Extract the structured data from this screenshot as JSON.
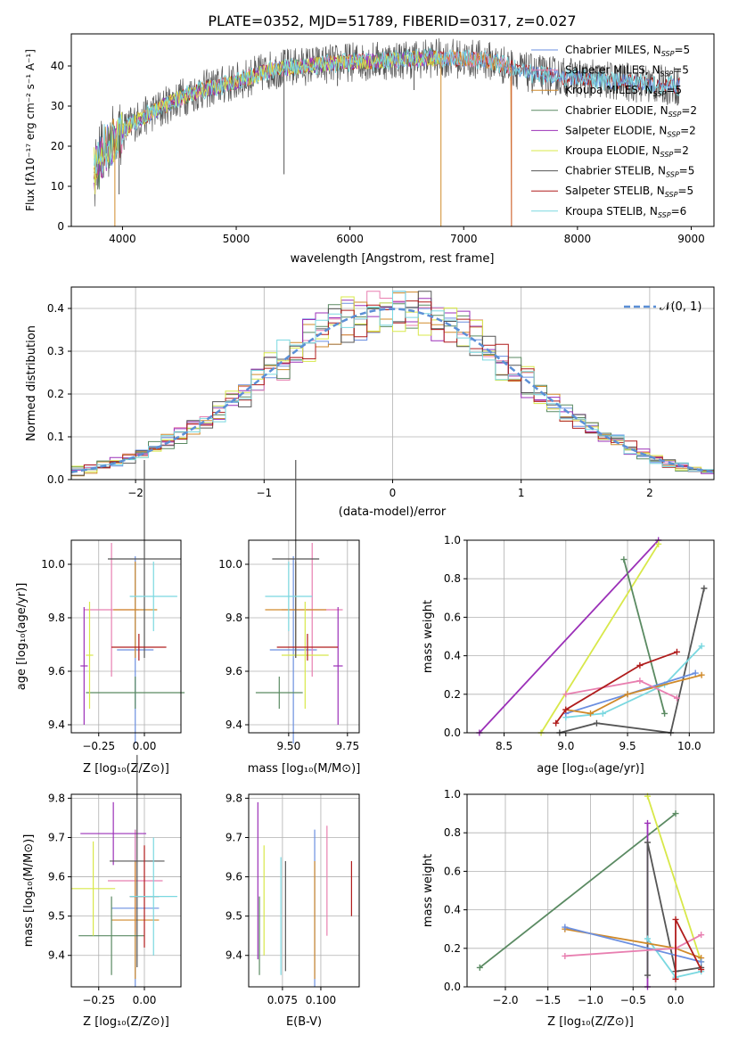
{
  "colors": {
    "chabrier_miles": "#6b8fe0",
    "salpeter_miles": "#e87fb0",
    "kroupa_miles": "#d08a2a",
    "chabrier_elodie": "#5a8a62",
    "salpeter_elodie": "#9b30b8",
    "kroupa_elodie": "#d8e84a",
    "chabrier_stelib": "#555555",
    "salpeter_stelib": "#b01c1c",
    "kroupa_stelib": "#7ad8e0",
    "normal": "#5b8fd6"
  },
  "chart_data": [
    {
      "id": "spectrum",
      "type": "line",
      "title": "PLATE=0352, MJD=51789, FIBERID=0317, z=0.027",
      "xlabel": "wavelength [Angstrom, rest frame]",
      "ylabel": "Flux [fλ10⁻¹⁷ erg cm⁻² s⁻¹ A⁻¹]",
      "xlim": [
        3550,
        9200
      ],
      "ylim": [
        0,
        48
      ],
      "xticks": [
        4000,
        5000,
        6000,
        7000,
        8000,
        9000
      ],
      "yticks": [
        0,
        10,
        20,
        30,
        40
      ],
      "grid": false,
      "legend_position": "top-right",
      "legend": [
        {
          "label": "Chabrier MILES, N",
          "sub": "SSP",
          "suffix": "=5",
          "color": "chabrier_miles"
        },
        {
          "label": "Salpeter MILES, N",
          "sub": "SSP",
          "suffix": "=5",
          "color": "salpeter_miles"
        },
        {
          "label": "Kroupa MILES, N",
          "sub": "SSP",
          "suffix": "=5",
          "color": "kroupa_miles"
        },
        {
          "label": "Chabrier ELODIE, N",
          "sub": "SSP",
          "suffix": "=2",
          "color": "chabrier_elodie"
        },
        {
          "label": "Salpeter ELODIE, N",
          "sub": "SSP",
          "suffix": "=2",
          "color": "salpeter_elodie"
        },
        {
          "label": "Kroupa ELODIE, N",
          "sub": "SSP",
          "suffix": "=2",
          "color": "kroupa_elodie"
        },
        {
          "label": "Chabrier STELIB, N",
          "sub": "SSP",
          "suffix": "=5",
          "color": "chabrier_stelib"
        },
        {
          "label": "Salpeter STELIB, N",
          "sub": "SSP",
          "suffix": "=5",
          "color": "salpeter_stelib"
        },
        {
          "label": "Kroupa STELIB, N",
          "sub": "SSP",
          "suffix": "=6",
          "color": "kroupa_stelib"
        }
      ],
      "continuum": [
        [
          3750,
          14
        ],
        [
          3900,
          21
        ],
        [
          4100,
          26
        ],
        [
          4300,
          29
        ],
        [
          4500,
          32
        ],
        [
          4700,
          34
        ],
        [
          5000,
          36
        ],
        [
          5300,
          39
        ],
        [
          5600,
          40
        ],
        [
          6000,
          41
        ],
        [
          6400,
          41.5
        ],
        [
          6800,
          42
        ],
        [
          7200,
          41.5
        ],
        [
          7600,
          38
        ],
        [
          8000,
          37
        ],
        [
          8400,
          36
        ],
        [
          8900,
          35
        ]
      ],
      "drops": [
        [
          3933,
          0
        ],
        [
          6800,
          0
        ],
        [
          7420,
          0
        ],
        [
          5420,
          13
        ],
        [
          4340,
          25
        ],
        [
          3970,
          8
        ],
        [
          5890,
          35
        ],
        [
          6563,
          34
        ]
      ]
    },
    {
      "id": "residuals",
      "type": "line",
      "xlabel": "(data-model)/error",
      "ylabel": "Normed distribution",
      "xlim": [
        -2.5,
        2.5
      ],
      "ylim": [
        0,
        0.45
      ],
      "xticks": [
        -2,
        -1,
        0,
        1,
        2
      ],
      "yticks": [
        0.0,
        0.1,
        0.2,
        0.3,
        0.4
      ],
      "grid": true,
      "legend_position": "top-right",
      "legend_label": "𝒩(0, 1)",
      "normal_sigma": 1
    },
    {
      "id": "z_age",
      "type": "scatter",
      "xlabel": "Z [log₁₀(Z/Z⊙)]",
      "ylabel": "age  [log₁₀(age/yr)]",
      "xlim": [
        -0.4,
        0.2
      ],
      "ylim": [
        9.37,
        10.09
      ],
      "xticks": [
        -0.25,
        0.0
      ],
      "xticklabels": [
        "−0.25",
        "0.00"
      ],
      "yticks": [
        9.4,
        9.6,
        9.8,
        10.0
      ],
      "grid": true,
      "points": [
        {
          "c": "chabrier_miles",
          "x": -0.05,
          "xerr": 0.1,
          "y": 9.68,
          "yerr": 0.35
        },
        {
          "c": "salpeter_miles",
          "x": -0.18,
          "xerr": 0.15,
          "y": 9.83,
          "yerr": 0.25
        },
        {
          "c": "kroupa_miles",
          "x": -0.05,
          "xerr": 0.12,
          "y": 9.83,
          "yerr": 0.18
        },
        {
          "c": "chabrier_elodie",
          "x": -0.05,
          "xerr": 0.27,
          "y": 9.52,
          "yerr": 0.06
        },
        {
          "c": "salpeter_elodie",
          "x": -0.33,
          "xerr": 0.02,
          "y": 9.62,
          "yerr": 0.22
        },
        {
          "c": "kroupa_elodie",
          "x": -0.3,
          "xerr": 0.02,
          "y": 9.66,
          "yerr": 0.2
        },
        {
          "c": "chabrier_stelib",
          "x": 0.0,
          "xerr": 0.2,
          "y": 10.02,
          "yerr": 0.37
        },
        {
          "c": "salpeter_stelib",
          "x": -0.03,
          "xerr": 0.15,
          "y": 9.69,
          "yerr": 0.05
        },
        {
          "c": "kroupa_stelib",
          "x": 0.05,
          "xerr": 0.13,
          "y": 9.88,
          "yerr": 0.13
        }
      ]
    },
    {
      "id": "mass_age",
      "type": "scatter",
      "xlabel": "mass [log₁₀(M/M⊙)]",
      "ylabel": "",
      "xlim": [
        9.33,
        9.8
      ],
      "ylim": [
        9.37,
        10.09
      ],
      "xticks": [
        9.5,
        9.6,
        9.7
      ],
      "xticklabels": [
        "9.50",
        "9.75"
      ],
      "xticks_shown": [
        9.5,
        9.75
      ],
      "yticks": [
        9.4,
        9.6,
        9.8,
        10.0
      ],
      "grid": true,
      "points": [
        {
          "c": "chabrier_miles",
          "x": 9.52,
          "xerr": 0.1,
          "y": 9.68,
          "yerr": 0.35
        },
        {
          "c": "salpeter_miles",
          "x": 9.6,
          "xerr": 0.13,
          "y": 9.83,
          "yerr": 0.25
        },
        {
          "c": "kroupa_miles",
          "x": 9.53,
          "xerr": 0.13,
          "y": 9.83,
          "yerr": 0.18
        },
        {
          "c": "chabrier_elodie",
          "x": 9.46,
          "xerr": 0.1,
          "y": 9.52,
          "yerr": 0.06
        },
        {
          "c": "salpeter_elodie",
          "x": 9.71,
          "xerr": 0.02,
          "y": 9.62,
          "yerr": 0.22
        },
        {
          "c": "kroupa_elodie",
          "x": 9.57,
          "xerr": 0.1,
          "y": 9.66,
          "yerr": 0.2
        },
        {
          "c": "chabrier_stelib",
          "x": 9.53,
          "xerr": 0.1,
          "y": 10.02,
          "yerr": 0.37
        },
        {
          "c": "salpeter_stelib",
          "x": 9.58,
          "xerr": 0.13,
          "y": 9.69,
          "yerr": 0.05
        },
        {
          "c": "kroupa_stelib",
          "x": 9.5,
          "xerr": 0.1,
          "y": 9.88,
          "yerr": 0.13
        }
      ]
    },
    {
      "id": "age_weight",
      "type": "line",
      "xlabel": "age  [log₁₀(age/yr)]",
      "ylabel": "mass weight",
      "xlim": [
        8.2,
        10.2
      ],
      "ylim": [
        0,
        1
      ],
      "xticks": [
        8.5,
        9.0,
        9.5,
        10.0
      ],
      "yticks": [
        0.0,
        0.2,
        0.4,
        0.6,
        0.8,
        1.0
      ],
      "grid": true,
      "series": [
        {
          "c": "salpeter_elodie",
          "x": [
            8.3,
            9.75
          ],
          "y": [
            0.0,
            1.0
          ]
        },
        {
          "c": "kroupa_elodie",
          "x": [
            8.8,
            9.75
          ],
          "y": [
            0.0,
            0.98
          ]
        },
        {
          "c": "chabrier_elodie",
          "x": [
            9.47,
            9.8
          ],
          "y": [
            0.9,
            0.1
          ]
        },
        {
          "c": "chabrier_stelib",
          "x": [
            8.95,
            9.25,
            9.85,
            10.12
          ],
          "y": [
            0.0,
            0.05,
            0.0,
            0.75
          ]
        },
        {
          "c": "kroupa_stelib",
          "x": [
            9.0,
            9.3,
            9.8,
            10.1
          ],
          "y": [
            0.08,
            0.1,
            0.25,
            0.45
          ]
        },
        {
          "c": "chabrier_miles",
          "x": [
            9.0,
            9.5,
            10.05
          ],
          "y": [
            0.1,
            0.2,
            0.31
          ]
        },
        {
          "c": "kroupa_miles",
          "x": [
            9.0,
            9.2,
            9.5,
            10.1
          ],
          "y": [
            0.12,
            0.1,
            0.2,
            0.3
          ]
        },
        {
          "c": "salpeter_miles",
          "x": [
            9.0,
            9.6,
            9.9
          ],
          "y": [
            0.2,
            0.27,
            0.18
          ]
        },
        {
          "c": "salpeter_stelib",
          "x": [
            8.92,
            9.0,
            9.6,
            9.9
          ],
          "y": [
            0.05,
            0.12,
            0.35,
            0.42
          ]
        }
      ]
    },
    {
      "id": "z_mass",
      "type": "scatter",
      "xlabel": "Z [log₁₀(Z/Z⊙)]",
      "ylabel": "mass [log₁₀(M/M⊙)]",
      "xlim": [
        -0.4,
        0.2
      ],
      "ylim": [
        9.32,
        9.81
      ],
      "xticks": [
        -0.25,
        0.0
      ],
      "xticklabels": [
        "−0.25",
        "0.00"
      ],
      "yticks": [
        9.4,
        9.5,
        9.6,
        9.7,
        9.8
      ],
      "grid": true,
      "points": [
        {
          "c": "chabrier_miles",
          "x": -0.05,
          "xerr": 0.13,
          "y": 9.52,
          "yerr": 0.2
        },
        {
          "c": "salpeter_miles",
          "x": -0.05,
          "xerr": 0.15,
          "y": 9.59,
          "yerr": 0.13
        },
        {
          "c": "kroupa_miles",
          "x": -0.05,
          "xerr": 0.13,
          "y": 9.49,
          "yerr": 0.15
        },
        {
          "c": "chabrier_elodie",
          "x": -0.18,
          "xerr": 0.18,
          "y": 9.45,
          "yerr": 0.1
        },
        {
          "c": "salpeter_elodie",
          "x": -0.17,
          "xerr": 0.18,
          "y": 9.71,
          "yerr": 0.08
        },
        {
          "c": "kroupa_elodie",
          "x": -0.28,
          "xerr": 0.12,
          "y": 9.57,
          "yerr": 0.12
        },
        {
          "c": "chabrier_stelib",
          "x": -0.04,
          "xerr": 0.15,
          "y": 9.64,
          "yerr": 0.27
        },
        {
          "c": "salpeter_stelib",
          "x": 0.0,
          "xerr": 0.08,
          "y": 9.55,
          "yerr": 0.13
        },
        {
          "c": "kroupa_stelib",
          "x": 0.05,
          "xerr": 0.13,
          "y": 9.55,
          "yerr": 0.15
        }
      ]
    },
    {
      "id": "ebv_mass",
      "type": "scatter",
      "xlabel": "E(B-V)",
      "ylabel": "",
      "xlim": [
        0.053,
        0.125
      ],
      "ylim": [
        9.32,
        9.81
      ],
      "xticks": [
        0.075,
        0.1
      ],
      "xticklabels": [
        "0.075",
        "0.100"
      ],
      "yticks": [
        9.4,
        9.5,
        9.6,
        9.7,
        9.8
      ],
      "grid": true,
      "points": [
        {
          "c": "chabrier_miles",
          "x": 0.096,
          "y": 9.52,
          "yerr": 0.2
        },
        {
          "c": "salpeter_miles",
          "x": 0.104,
          "y": 9.59,
          "yerr": 0.14
        },
        {
          "c": "kroupa_miles",
          "x": 0.096,
          "y": 9.49,
          "yerr": 0.15
        },
        {
          "c": "chabrier_elodie",
          "x": 0.06,
          "y": 9.45,
          "yerr": 0.1
        },
        {
          "c": "salpeter_elodie",
          "x": 0.059,
          "y": 9.59,
          "yerr": 0.2
        },
        {
          "c": "kroupa_elodie",
          "x": 0.063,
          "y": 9.54,
          "yerr": 0.14
        },
        {
          "c": "chabrier_stelib",
          "x": 0.077,
          "y": 9.5,
          "yerr": 0.14
        },
        {
          "c": "salpeter_stelib",
          "x": 0.12,
          "y": 9.57,
          "yerr": 0.07
        },
        {
          "c": "kroupa_stelib",
          "x": 0.074,
          "y": 9.5,
          "yerr": 0.15
        }
      ]
    },
    {
      "id": "z_weight",
      "type": "line",
      "xlabel": "Z [log₁₀(Z/Z⊙)]",
      "ylabel": "mass weight",
      "xlim": [
        -2.45,
        0.45
      ],
      "ylim": [
        0,
        1
      ],
      "xticks": [
        -2.0,
        -1.5,
        -1.0,
        -0.5,
        0.0
      ],
      "xticklabels": [
        "−2.0",
        "−1.5",
        "−1.0",
        "−0.5",
        "0.0"
      ],
      "yticks": [
        0.0,
        0.2,
        0.4,
        0.6,
        0.8,
        1.0
      ],
      "grid": true,
      "series": [
        {
          "c": "chabrier_elodie",
          "x": [
            -2.3,
            0.0
          ],
          "y": [
            0.1,
            0.9
          ]
        },
        {
          "c": "kroupa_elodie",
          "x": [
            -0.33,
            0.3
          ],
          "y": [
            0.99,
            0.13
          ]
        },
        {
          "c": "salpeter_elodie",
          "x": [
            -0.33,
            -0.33
          ],
          "y": [
            0.0,
            0.85
          ]
        },
        {
          "c": "chabrier_stelib",
          "x": [
            -0.33,
            -0.33,
            0.0,
            0.3
          ],
          "y": [
            0.06,
            0.75,
            0.08,
            0.1
          ]
        },
        {
          "c": "kroupa_stelib",
          "x": [
            -0.33,
            0.0,
            0.3
          ],
          "y": [
            0.25,
            0.05,
            0.08
          ]
        },
        {
          "c": "kroupa_miles",
          "x": [
            -1.3,
            0.0,
            0.3
          ],
          "y": [
            0.3,
            0.2,
            0.15
          ]
        },
        {
          "c": "chabrier_miles",
          "x": [
            -1.3,
            0.3
          ],
          "y": [
            0.31,
            0.13
          ]
        },
        {
          "c": "salpeter_miles",
          "x": [
            -1.3,
            0.0,
            0.3
          ],
          "y": [
            0.16,
            0.2,
            0.27
          ]
        },
        {
          "c": "salpeter_stelib",
          "x": [
            0.0,
            0.0,
            0.3
          ],
          "y": [
            0.04,
            0.35,
            0.09
          ]
        }
      ]
    }
  ]
}
